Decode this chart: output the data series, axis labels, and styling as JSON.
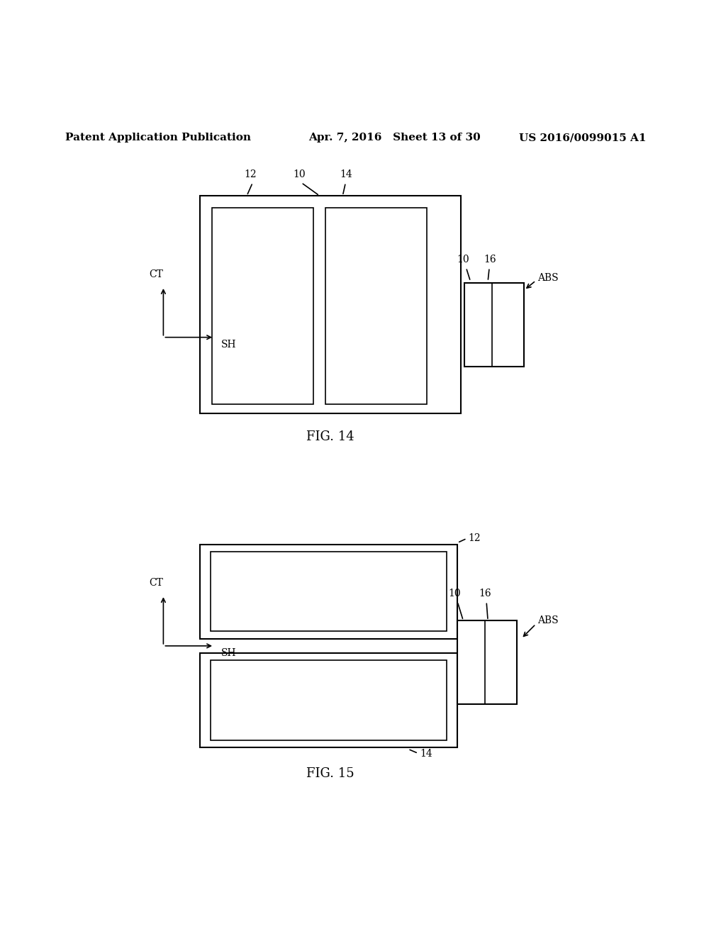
{
  "bg_color": "#ffffff",
  "header_text": "Patent Application Publication",
  "header_date": "Apr. 7, 2016   Sheet 13 of 30",
  "header_patent": "US 2016/0099015 A1",
  "fig14_label": "FIG. 14",
  "fig15_label": "FIG. 15"
}
